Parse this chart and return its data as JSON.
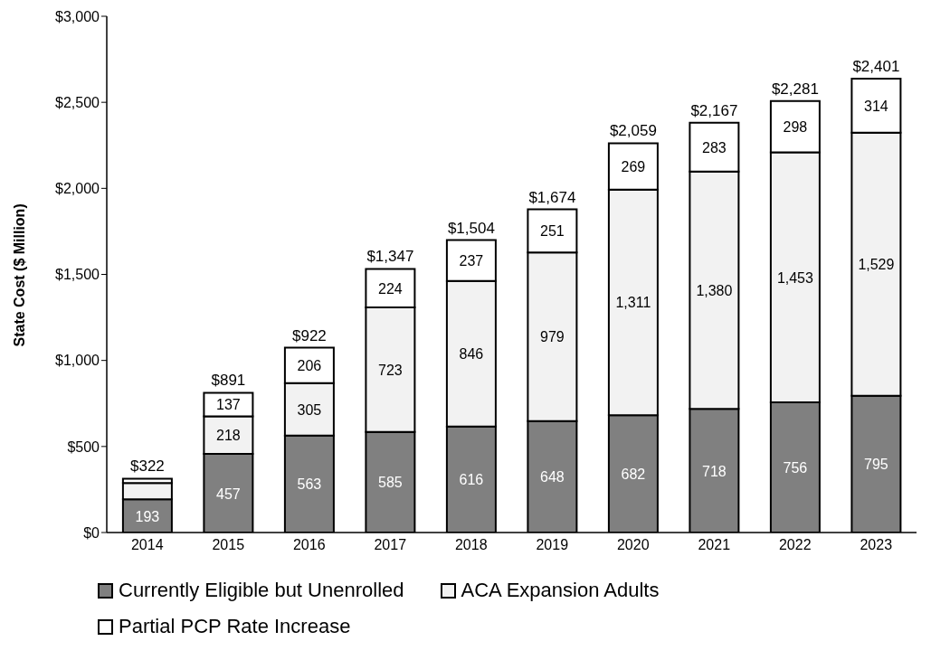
{
  "chart_data": {
    "type": "bar",
    "stacked": true,
    "ylabel": "State Cost ($ Million)",
    "categories": [
      "2014",
      "2015",
      "2016",
      "2017",
      "2018",
      "2019",
      "2020",
      "2021",
      "2022",
      "2023"
    ],
    "series": [
      {
        "name": "Currently Eligible but Unenrolled",
        "color": "#808080",
        "values": [
          193,
          457,
          563,
          585,
          616,
          648,
          682,
          718,
          756,
          795
        ],
        "value_labels": [
          "193",
          "457",
          "563",
          "585",
          "616",
          "648",
          "682",
          "718",
          "756",
          "795"
        ]
      },
      {
        "name": "ACA Expansion Adults",
        "color": "#f2f2f2",
        "values": [
          95,
          218,
          305,
          723,
          846,
          979,
          1311,
          1380,
          1453,
          1529
        ],
        "value_labels": [
          null,
          "218",
          "305",
          "723",
          "846",
          "979",
          "1,311",
          "1,380",
          "1,453",
          "1,529"
        ]
      },
      {
        "name": "Partial PCP Rate Increase",
        "color": "#ffffff",
        "values": [
          25,
          137,
          206,
          224,
          237,
          251,
          269,
          283,
          298,
          314
        ],
        "value_labels": [
          null,
          "137",
          "206",
          "224",
          "237",
          "251",
          "269",
          "283",
          "298",
          "314"
        ]
      }
    ],
    "annotations": [
      {
        "text": "$322",
        "x": "2014",
        "y": 313
      },
      {
        "text": "$891",
        "x": "2015",
        "y": 812
      },
      {
        "text": "$922",
        "x": "2016",
        "y": 1074
      },
      {
        "text": "$1,347",
        "x": "2017",
        "y": 1532
      },
      {
        "text": "$1,504",
        "x": "2018",
        "y": 1699
      },
      {
        "text": "$1,674",
        "x": "2019",
        "y": 1878
      },
      {
        "text": "$2,059",
        "x": "2020",
        "y": 2262
      },
      {
        "text": "$2,167",
        "x": "2021",
        "y": 2381
      },
      {
        "text": "$2,281",
        "x": "2022",
        "y": 2507
      },
      {
        "text": "$2,401",
        "x": "2023",
        "y": 2638
      }
    ],
    "ylim": [
      0,
      3000
    ],
    "yticks": [
      {
        "value": 0,
        "label": "$0"
      },
      {
        "value": 500,
        "label": "$500"
      },
      {
        "value": 1000,
        "label": "$1,000"
      },
      {
        "value": 1500,
        "label": "$1,500"
      },
      {
        "value": 2000,
        "label": "$2,000"
      },
      {
        "value": 2500,
        "label": "$2,500"
      },
      {
        "value": 3000,
        "label": "$3,000"
      }
    ],
    "grid": false,
    "legend": "bottom left"
  }
}
